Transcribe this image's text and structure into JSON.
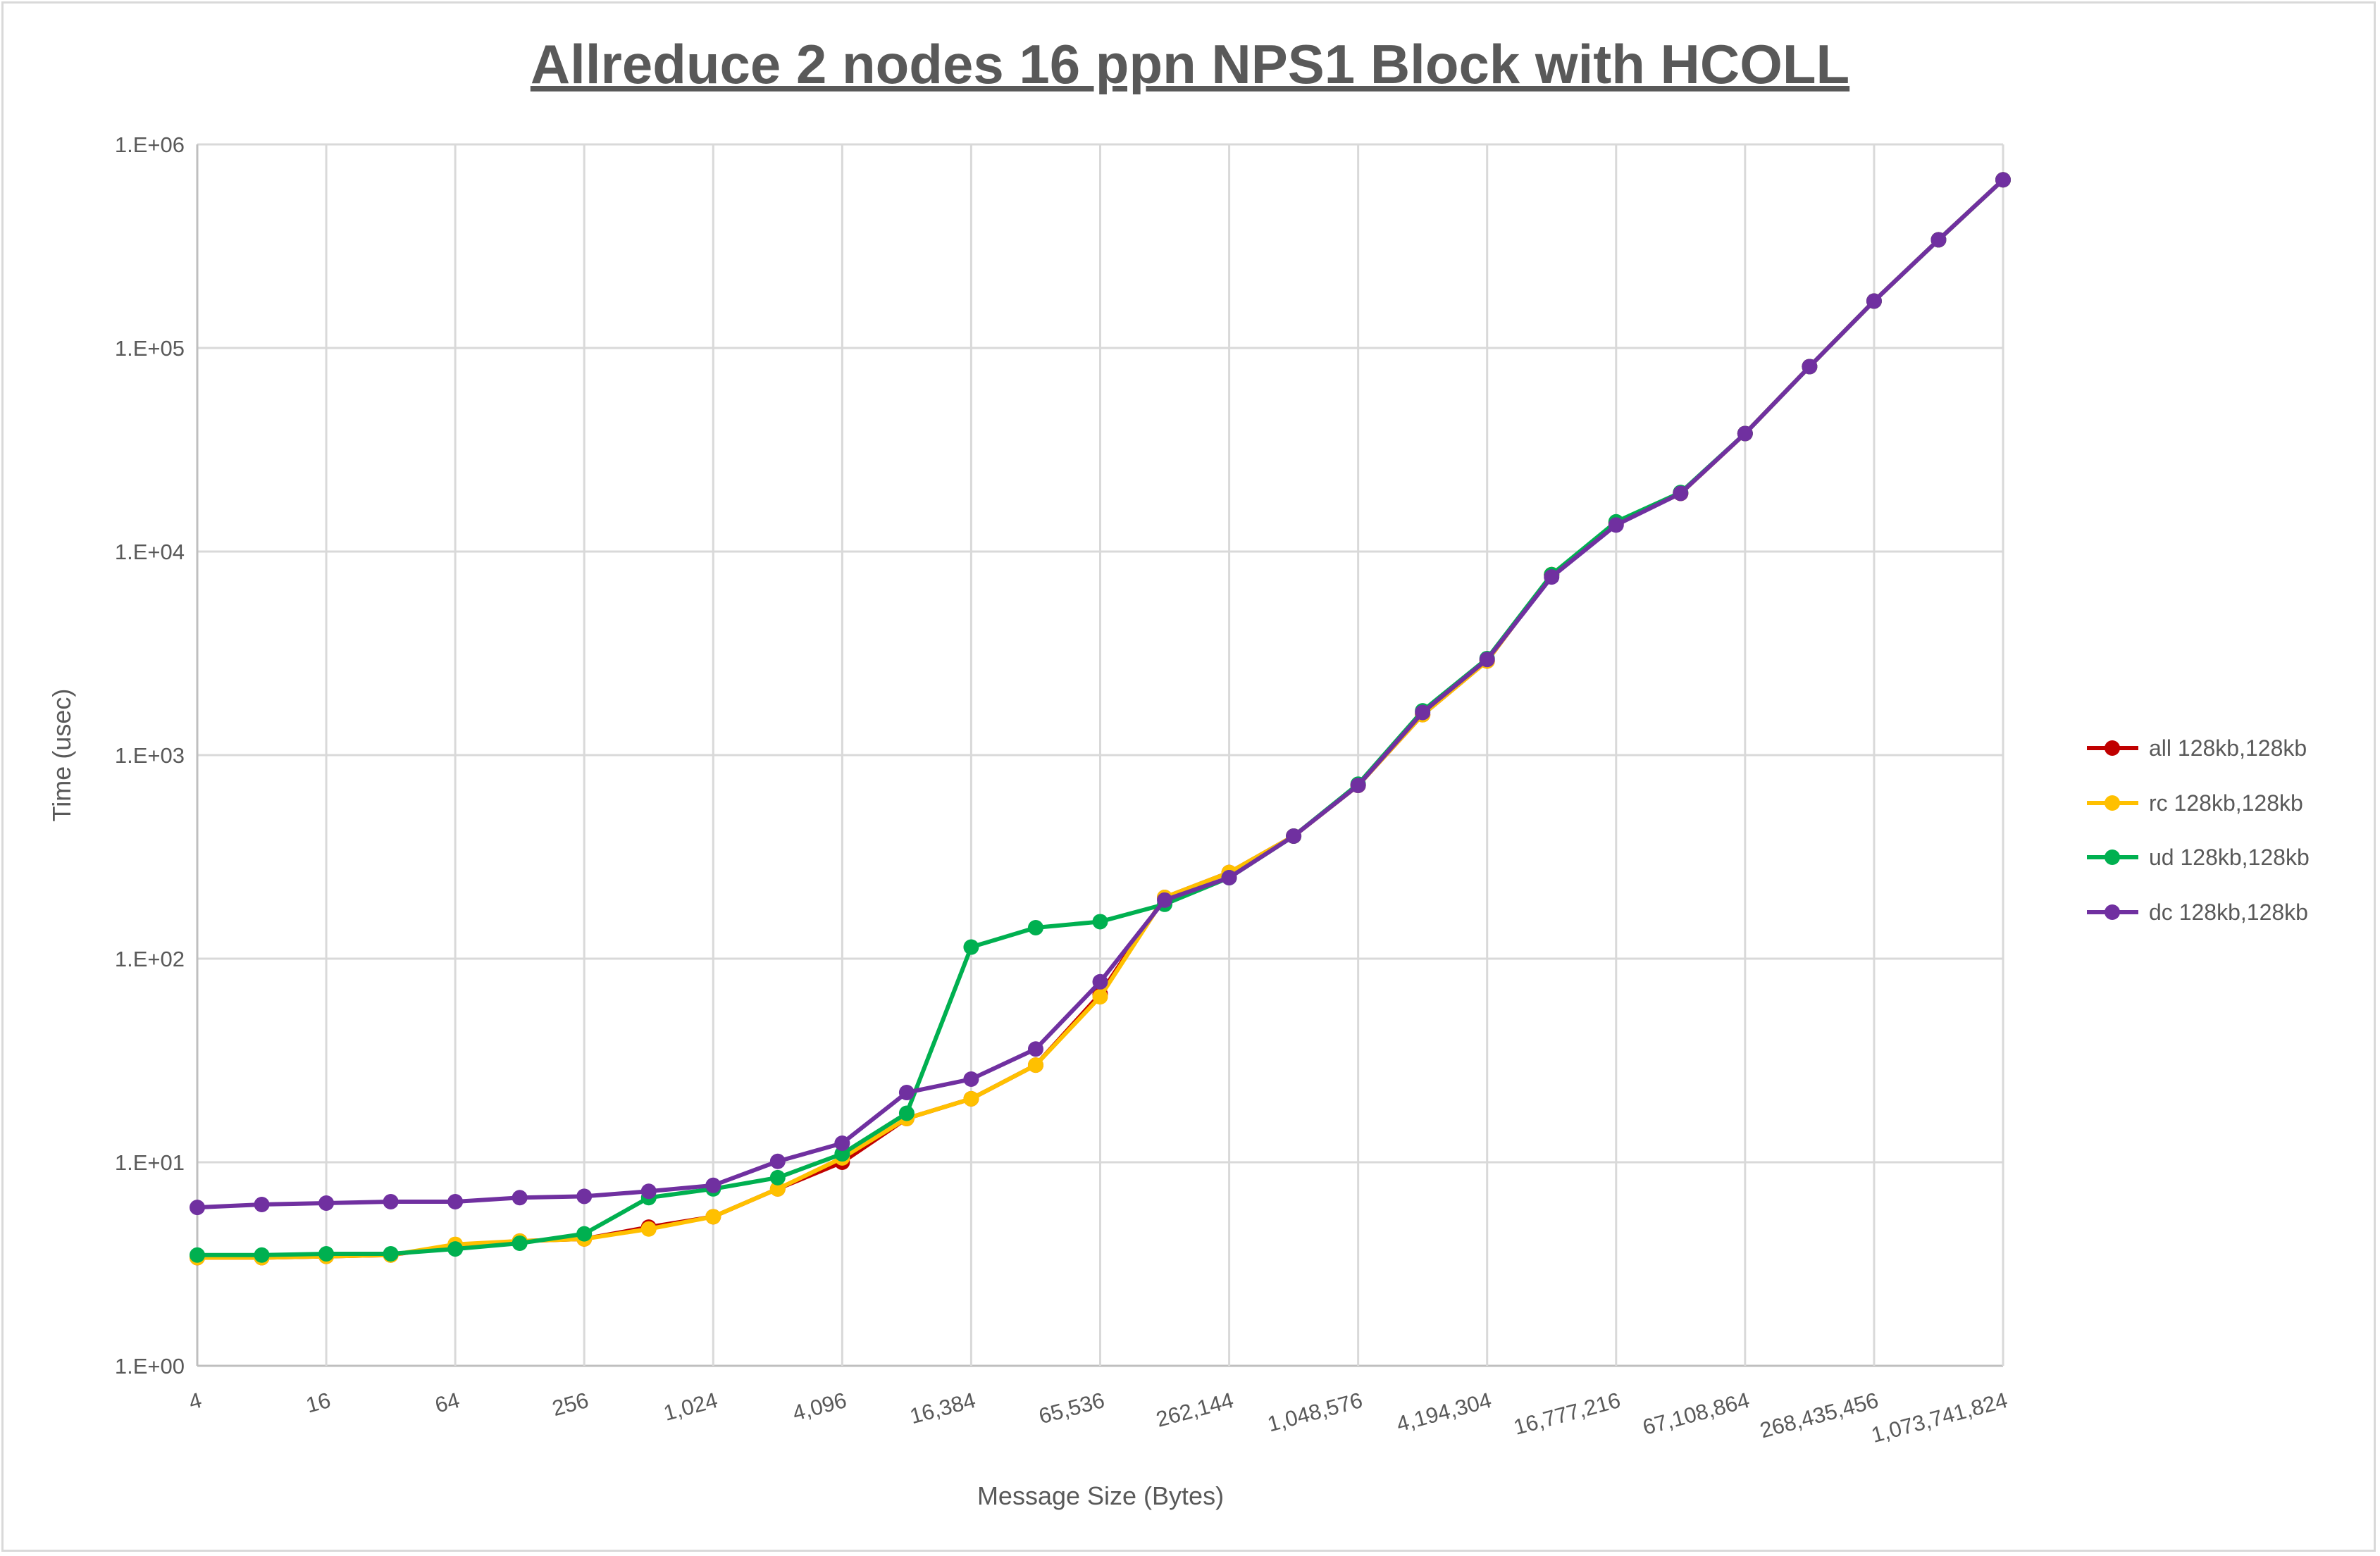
{
  "chart_data": {
    "type": "line",
    "title": "Allreduce 2 nodes 16 ppn NPS1 Block with HCOLL",
    "xlabel": "Message Size (Bytes)",
    "ylabel": "Time (usec)",
    "y_scale": "log",
    "ylim": [
      1,
      1000000
    ],
    "y_ticks": [
      "1.E+00",
      "1.E+01",
      "1.E+02",
      "1.E+03",
      "1.E+04",
      "1.E+05",
      "1.E+06"
    ],
    "x_scale": "log2",
    "x": [
      4,
      8,
      16,
      32,
      64,
      128,
      256,
      512,
      1024,
      2048,
      4096,
      8192,
      16384,
      32768,
      65536,
      131072,
      262144,
      524288,
      1048576,
      2097152,
      4194304,
      8388608,
      16777216,
      33554432,
      67108864,
      134217728,
      268435456,
      536870912,
      1073741824
    ],
    "x_tick_labels": [
      "4",
      "16",
      "64",
      "256",
      "1,024",
      "4,096",
      "16,384",
      "65,536",
      "262,144",
      "1,048,576",
      "4,194,304",
      "16,777,216",
      "67,108,864",
      "268,435,456",
      "1,073,741,824"
    ],
    "grid": true,
    "legend_position": "right",
    "series": [
      {
        "name": "all 128kb,128kb",
        "color": "#c00000",
        "values": [
          3.4,
          3.4,
          3.45,
          3.5,
          3.9,
          4.1,
          4.2,
          4.8,
          5.4,
          7.4,
          10.0,
          16.4,
          20.5,
          30,
          67,
          200,
          265,
          400,
          710,
          1580,
          2900,
          7700,
          13800,
          19300,
          38000,
          81000,
          170000,
          340000,
          670000
        ]
      },
      {
        "name": "rc 128kb,128kb",
        "color": "#ffc000",
        "values": [
          3.4,
          3.4,
          3.45,
          3.5,
          3.95,
          4.1,
          4.2,
          4.7,
          5.4,
          7.4,
          10.5,
          16.4,
          20.5,
          30,
          65,
          200,
          265,
          400,
          710,
          1580,
          2900,
          7700,
          13800,
          19300,
          38000,
          81000,
          170000,
          340000,
          670000
        ]
      },
      {
        "name": "ud 128kb,128kb",
        "color": "#00b050",
        "values": [
          3.5,
          3.5,
          3.55,
          3.55,
          3.75,
          4.0,
          4.45,
          6.7,
          7.4,
          8.4,
          11,
          17.4,
          114,
          142,
          152,
          185,
          250,
          400,
          720,
          1650,
          2980,
          7700,
          14000,
          19500,
          38000,
          81000,
          170000,
          340000,
          670000
        ]
      },
      {
        "name": "dc 128kb,128kb",
        "color": "#7030a0",
        "values": [
          6.0,
          6.2,
          6.3,
          6.4,
          6.4,
          6.7,
          6.8,
          7.2,
          7.7,
          10.1,
          12.4,
          22,
          25.6,
          36,
          77,
          194,
          250,
          400,
          710,
          1620,
          2950,
          7500,
          13500,
          19300,
          38000,
          81000,
          170000,
          340000,
          670000
        ]
      }
    ]
  }
}
